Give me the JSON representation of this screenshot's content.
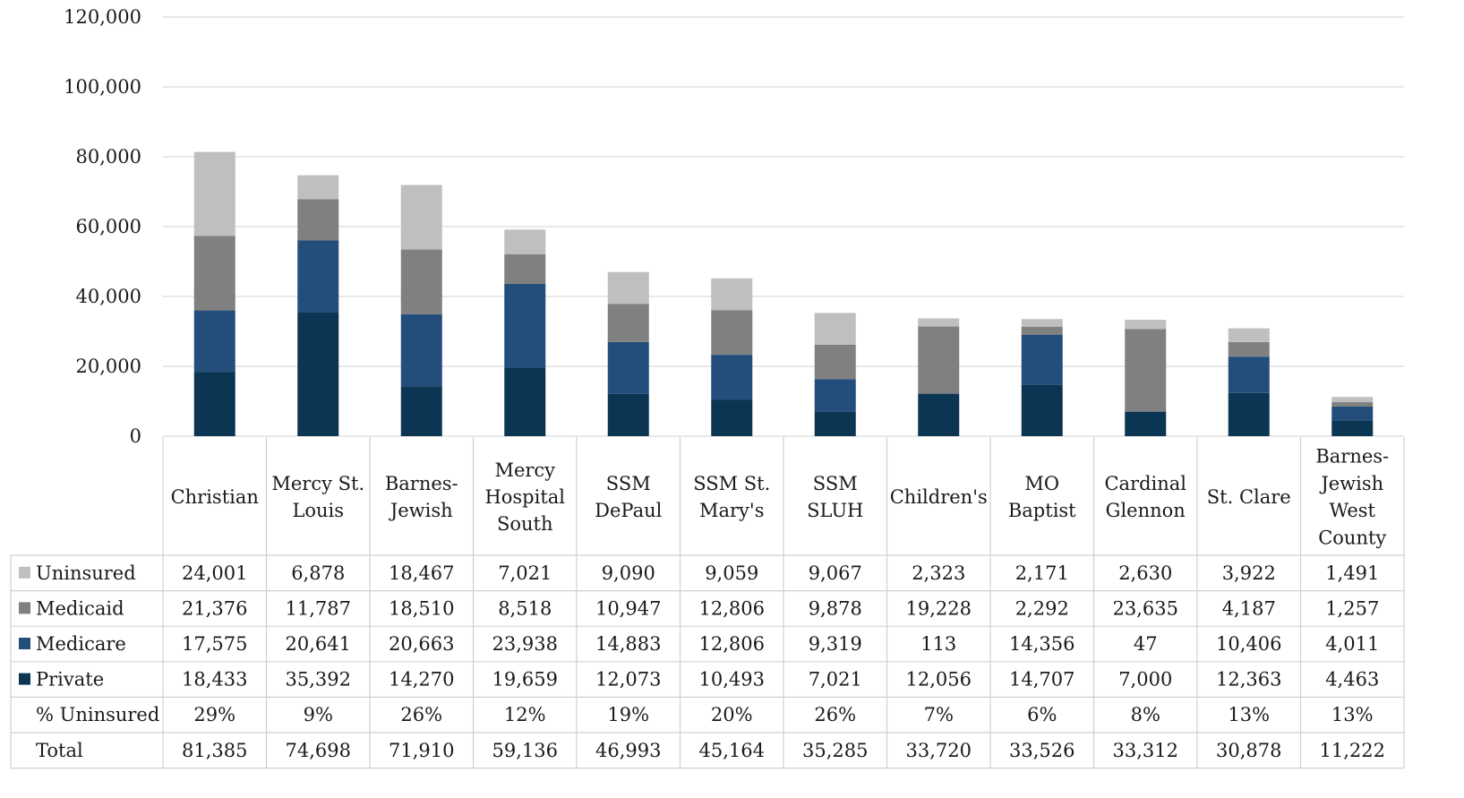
{
  "chart_data": {
    "type": "bar",
    "stacked": true,
    "categories": [
      "Christian",
      "Mercy St. Louis",
      "Barnes-Jewish",
      "Mercy Hospital South",
      "SSM DePaul",
      "SSM St. Mary's",
      "SSM SLUH",
      "Children's",
      "MO Baptist",
      "Cardinal Glennon",
      "St. Clare",
      "Barnes-Jewish West County"
    ],
    "category_lines": [
      [
        "Christian"
      ],
      [
        "Mercy St.",
        "Louis"
      ],
      [
        "Barnes-",
        "Jewish"
      ],
      [
        "Mercy",
        "Hospital",
        "South"
      ],
      [
        "SSM",
        "DePaul"
      ],
      [
        "SSM St.",
        "Mary's"
      ],
      [
        "SSM",
        "SLUH"
      ],
      [
        "Children's"
      ],
      [
        "MO",
        "Baptist"
      ],
      [
        "Cardinal",
        "Glennon"
      ],
      [
        "St. Clare"
      ],
      [
        "Barnes-",
        "Jewish",
        "West",
        "County"
      ]
    ],
    "series": [
      {
        "name": "Private",
        "color": "#0b3552",
        "values": [
          18433,
          35392,
          14270,
          19659,
          12073,
          10493,
          7021,
          12056,
          14707,
          7000,
          12363,
          4463
        ],
        "labels": [
          "18,433",
          "35,392",
          "14,270",
          "19,659",
          "12,073",
          "10,493",
          "7,021",
          "12,056",
          "14,707",
          "7,000",
          "12,363",
          "4,463"
        ]
      },
      {
        "name": "Medicare",
        "color": "#234d7a",
        "values": [
          17575,
          20641,
          20663,
          23938,
          14883,
          12806,
          9319,
          113,
          14356,
          47,
          10406,
          4011
        ],
        "labels": [
          "17,575",
          "20,641",
          "20,663",
          "23,938",
          "14,883",
          "12,806",
          "9,319",
          "113",
          "14,356",
          "47",
          "10,406",
          "4,011"
        ]
      },
      {
        "name": "Medicaid",
        "color": "#808080",
        "values": [
          21376,
          11787,
          18510,
          8518,
          10947,
          12806,
          9878,
          19228,
          2292,
          23635,
          4187,
          1257
        ],
        "labels": [
          "21,376",
          "11,787",
          "18,510",
          "8,518",
          "10,947",
          "12,806",
          "9,878",
          "19,228",
          "2,292",
          "23,635",
          "4,187",
          "1,257"
        ]
      },
      {
        "name": "Uninsured",
        "color": "#bfbfbf",
        "values": [
          24001,
          6878,
          18467,
          7021,
          9090,
          9059,
          9067,
          2323,
          2171,
          2630,
          3922,
          1491
        ],
        "labels": [
          "24,001",
          "6,878",
          "18,467",
          "7,021",
          "9,090",
          "9,059",
          "9,067",
          "2,323",
          "2,171",
          "2,630",
          "3,922",
          "1,491"
        ]
      }
    ],
    "table_row_order": [
      "Uninsured",
      "Medicaid",
      "Medicare",
      "Private"
    ],
    "extra_rows": [
      {
        "name": "% Uninsured",
        "labels": [
          "29%",
          "9%",
          "26%",
          "12%",
          "19%",
          "20%",
          "26%",
          "7%",
          "6%",
          "8%",
          "13%",
          "13%"
        ]
      },
      {
        "name": "Total",
        "labels": [
          "81,385",
          "74,698",
          "71,910",
          "59,136",
          "46,993",
          "45,164",
          "35,285",
          "33,720",
          "33,526",
          "33,312",
          "30,878",
          "11,222"
        ]
      }
    ],
    "y_ticks": [
      "0",
      "20,000",
      "40,000",
      "60,000",
      "80,000",
      "100,000",
      "120,000"
    ],
    "ylim": [
      0,
      120000
    ],
    "grid": true,
    "legend": "data-table-left"
  }
}
